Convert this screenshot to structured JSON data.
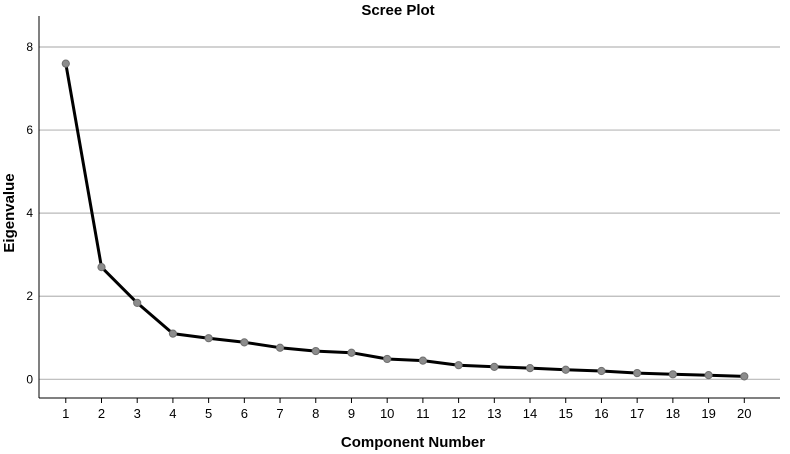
{
  "chart_data": {
    "type": "line",
    "title": "Scree Plot",
    "xlabel": "Component Number",
    "ylabel": "Eigenvalue",
    "x": [
      1,
      2,
      3,
      4,
      5,
      6,
      7,
      8,
      9,
      10,
      11,
      12,
      13,
      14,
      15,
      16,
      17,
      18,
      19,
      20
    ],
    "values": [
      7.6,
      2.7,
      1.84,
      1.1,
      0.99,
      0.89,
      0.76,
      0.68,
      0.64,
      0.49,
      0.45,
      0.34,
      0.3,
      0.27,
      0.23,
      0.2,
      0.15,
      0.12,
      0.1,
      0.07
    ],
    "xticks": [
      "1",
      "2",
      "3",
      "4",
      "5",
      "6",
      "7",
      "8",
      "9",
      "10",
      "11",
      "12",
      "13",
      "14",
      "15",
      "16",
      "17",
      "18",
      "19",
      "20"
    ],
    "yticks": [
      "0",
      "2",
      "4",
      "6",
      "8"
    ],
    "ylim": [
      -0.45,
      8.65
    ],
    "xlim": [
      0.25,
      21
    ],
    "grid": true,
    "line_color": "#000000",
    "point_color": "#8c8c8c",
    "grid_color": "#b8b8b8"
  }
}
